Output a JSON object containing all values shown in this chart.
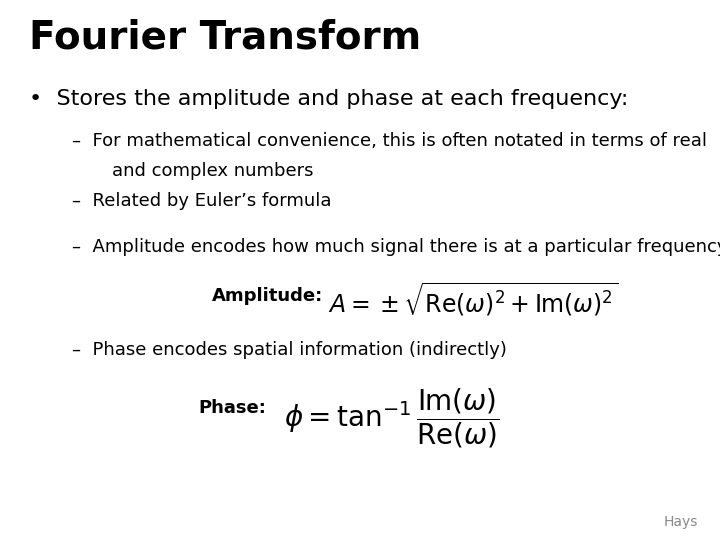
{
  "title": "Fourier Transform",
  "background_color": "#ffffff",
  "text_color": "#000000",
  "title_fontsize": 28,
  "body_fontsize": 16,
  "small_fontsize": 13,
  "bullet": "Stores the amplitude and phase at each frequency:",
  "sub1_line1": "For mathematical convenience, this is often notated in terms of real",
  "sub1_line2": "and complex numbers",
  "sub2": "Related by Euler’s formula",
  "sub3": "Amplitude encodes how much signal there is at a particular frequency",
  "amplitude_label": "Amplitude:",
  "sub4": "Phase encodes spatial information (indirectly)",
  "phase_label": "Phase:",
  "footer": "Hays"
}
